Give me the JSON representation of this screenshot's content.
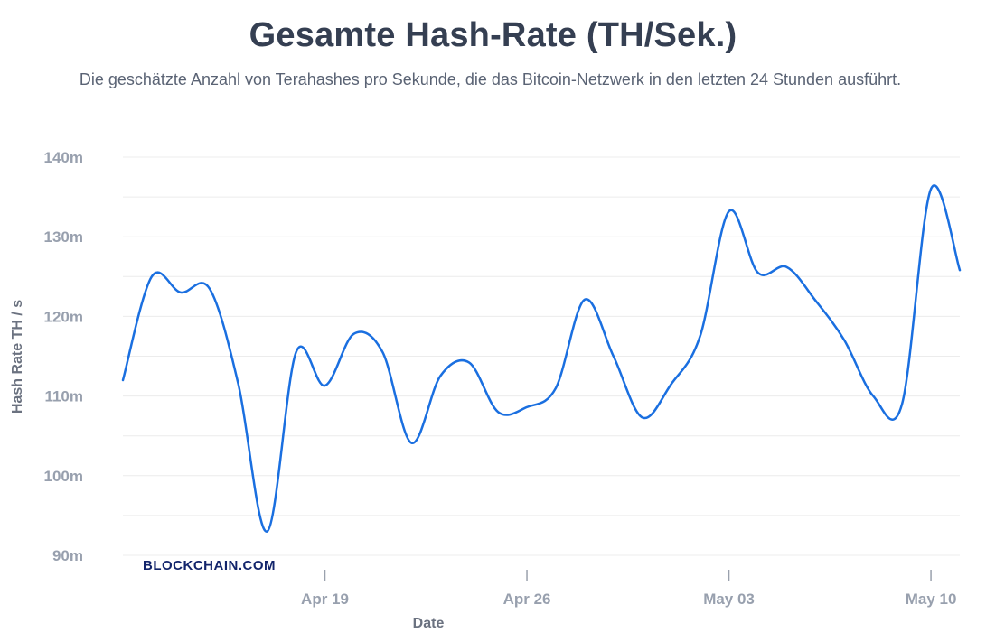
{
  "title": "Gesamte Hash-Rate (TH/Sek.)",
  "subtitle": "Die geschätzte Anzahl von Terahashes pro Sekunde, die das Bitcoin-Netzwerk in den letzten 24 Stunden ausführt.",
  "watermark": "BLOCKCHAIN.COM",
  "colors": {
    "line": "#1a6fe0",
    "grid": "#ececec",
    "title": "#353f52",
    "tick": "#98a0ae"
  },
  "chart_data": {
    "type": "line",
    "title": "Gesamte Hash-Rate (TH/Sek.)",
    "xlabel": "Date",
    "ylabel": "Hash Rate TH / s",
    "ylim": [
      90,
      140
    ],
    "y_ticks": [
      {
        "value": 90,
        "label": "90m"
      },
      {
        "value": 100,
        "label": "100m"
      },
      {
        "value": 110,
        "label": "110m"
      },
      {
        "value": 120,
        "label": "120m"
      },
      {
        "value": 130,
        "label": "130m"
      },
      {
        "value": 140,
        "label": "140m"
      }
    ],
    "x_ticks": [
      {
        "date": "2021-04-19",
        "label": "Apr 19"
      },
      {
        "date": "2021-04-26",
        "label": "Apr 26"
      },
      {
        "date": "2021-05-03",
        "label": "May 03"
      },
      {
        "date": "2021-05-10",
        "label": "May 10"
      }
    ],
    "grid": true,
    "legend": "none",
    "series": [
      {
        "x": [
          "2021-04-12",
          "2021-04-13",
          "2021-04-14",
          "2021-04-15",
          "2021-04-16",
          "2021-04-17",
          "2021-04-18",
          "2021-04-19",
          "2021-04-20",
          "2021-04-21",
          "2021-04-22",
          "2021-04-23",
          "2021-04-24",
          "2021-04-25",
          "2021-04-26",
          "2021-04-27",
          "2021-04-28",
          "2021-04-29",
          "2021-04-30",
          "2021-05-01",
          "2021-05-02",
          "2021-05-03",
          "2021-05-04",
          "2021-05-05",
          "2021-05-06",
          "2021-05-07",
          "2021-05-08",
          "2021-05-09",
          "2021-05-10",
          "2021-05-11"
        ],
        "values": [
          112.0,
          125.0,
          123.0,
          123.5,
          111.5,
          93.0,
          115.5,
          111.3,
          117.8,
          115.5,
          104.1,
          112.5,
          114.2,
          108.0,
          108.6,
          111.0,
          122.1,
          115.0,
          107.3,
          111.5,
          117.5,
          133.2,
          125.5,
          126.2,
          122.0,
          117.0,
          110.0,
          109.0,
          136.0,
          125.8
        ]
      }
    ]
  }
}
